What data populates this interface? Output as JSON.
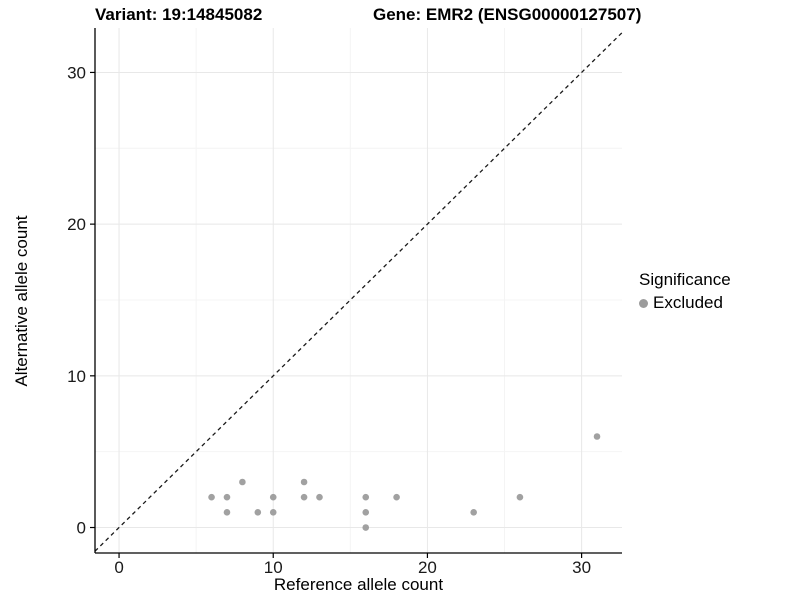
{
  "chart_data": {
    "type": "scatter",
    "title_left": "Variant: 19:14845082",
    "title_right": "Gene: EMR2 (ENSG00000127507)",
    "xlabel": "Reference allele count",
    "ylabel": "Alternative allele count",
    "x_ticks": [
      0,
      10,
      20,
      30
    ],
    "y_ticks": [
      0,
      10,
      20,
      30
    ],
    "x_minor_ticks": [
      5,
      15,
      25
    ],
    "y_minor_ticks": [
      5,
      15,
      25
    ],
    "xlim": [
      -1.56,
      32.62
    ],
    "ylim": [
      -1.68,
      32.93
    ],
    "grid": true,
    "legend": {
      "title": "Significance",
      "position": "right",
      "entries": [
        {
          "label": "Excluded",
          "color": "#9c9c9c"
        }
      ]
    },
    "identity_line": {
      "style": "dashed",
      "color": "#1a1a1a",
      "equation": "y = x"
    },
    "series": [
      {
        "name": "Excluded",
        "color": "#9c9c9c",
        "points": [
          [
            6,
            2
          ],
          [
            7,
            1
          ],
          [
            7,
            2
          ],
          [
            8,
            3
          ],
          [
            9,
            1
          ],
          [
            10,
            1
          ],
          [
            10,
            2
          ],
          [
            12,
            2
          ],
          [
            12,
            3
          ],
          [
            13,
            2
          ],
          [
            16,
            0
          ],
          [
            16,
            1
          ],
          [
            16,
            2
          ],
          [
            18,
            2
          ],
          [
            23,
            1
          ],
          [
            26,
            2
          ],
          [
            31,
            6
          ]
        ]
      }
    ],
    "colors": {
      "grid_major": "#e8e8e8",
      "grid_minor": "#f4f4f4",
      "axis_line": "#000000",
      "tick_label": "#1a1a1a",
      "point": "#9c9c9c"
    }
  }
}
